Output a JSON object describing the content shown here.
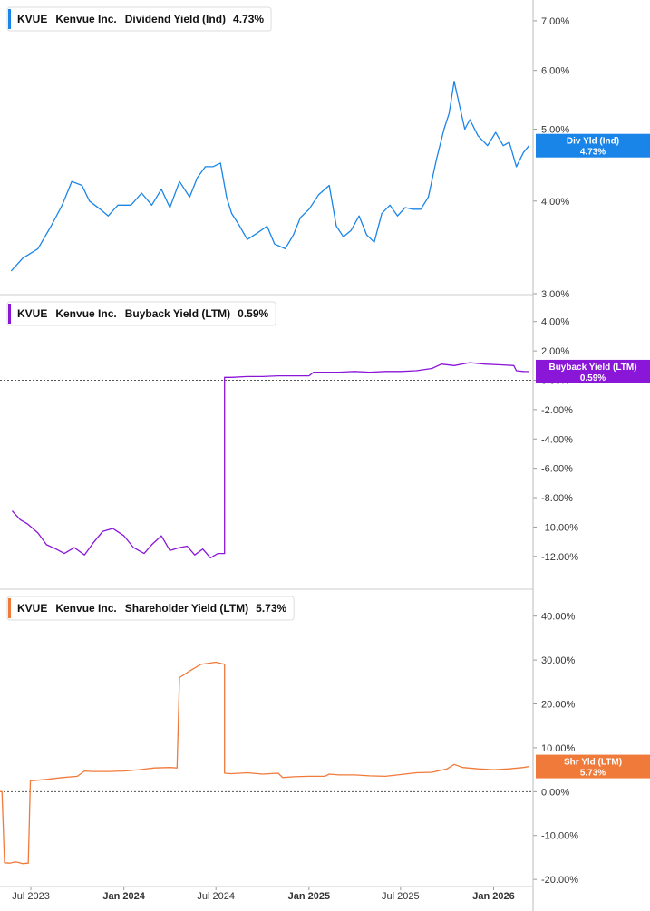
{
  "x_axis": {
    "ticks": [
      {
        "label": "Jul 2023",
        "date": "2023-07-01",
        "bold": false
      },
      {
        "label": "Jan 2024",
        "date": "2024-01-01",
        "bold": true
      },
      {
        "label": "Jul 2024",
        "date": "2024-07-01",
        "bold": false
      },
      {
        "label": "Jan 2025",
        "date": "2025-01-01",
        "bold": true
      },
      {
        "label": "Jul 2025",
        "date": "2025-07-01",
        "bold": false
      },
      {
        "label": "Jan 2026",
        "date": "2026-01-01",
        "bold": true
      }
    ],
    "range": [
      "2023-05-01",
      "2026-03-20"
    ]
  },
  "chart_data": [
    {
      "type": "line",
      "ticker": "KVUE",
      "company": "Kenvue Inc.",
      "metric": "Dividend Yield (Ind)",
      "last_value": "4.73%",
      "tag_line1": "Div Yld (Ind)",
      "tag_line2": "4.73%",
      "color": "#1a85e8",
      "scale": "log",
      "ylim": [
        2.95,
        7.3
      ],
      "yticks": [
        "7.00%",
        "6.00%",
        "5.00%",
        "4.00%",
        "3.00%"
      ],
      "ytick_values": [
        7,
        6,
        5,
        4,
        3
      ],
      "zero_line": false,
      "x": [
        "2023-05-23",
        "2023-06-15",
        "2023-07-15",
        "2023-08-10",
        "2023-09-01",
        "2023-09-20",
        "2023-10-10",
        "2023-10-25",
        "2023-11-15",
        "2023-12-01",
        "2023-12-20",
        "2024-01-15",
        "2024-02-05",
        "2024-02-25",
        "2024-03-15",
        "2024-04-01",
        "2024-04-20",
        "2024-05-10",
        "2024-05-25",
        "2024-06-10",
        "2024-06-25",
        "2024-07-10",
        "2024-07-22",
        "2024-08-01",
        "2024-08-15",
        "2024-09-01",
        "2024-09-20",
        "2024-10-10",
        "2024-10-25",
        "2024-11-15",
        "2024-12-01",
        "2024-12-15",
        "2025-01-01",
        "2025-01-20",
        "2025-02-10",
        "2025-02-24",
        "2025-03-10",
        "2025-03-25",
        "2025-04-10",
        "2025-04-25",
        "2025-05-10",
        "2025-05-25",
        "2025-06-10",
        "2025-06-25",
        "2025-07-10",
        "2025-07-25",
        "2025-08-10",
        "2025-08-25",
        "2025-09-10",
        "2025-09-25",
        "2025-10-05",
        "2025-10-15",
        "2025-10-25",
        "2025-11-05",
        "2025-11-15",
        "2025-12-01",
        "2025-12-20",
        "2026-01-05",
        "2026-01-20",
        "2026-02-01",
        "2026-02-15",
        "2026-03-01",
        "2026-03-12"
      ],
      "y": [
        3.22,
        3.35,
        3.45,
        3.7,
        3.95,
        4.25,
        4.2,
        4.0,
        3.9,
        3.82,
        3.95,
        3.95,
        4.1,
        3.95,
        4.15,
        3.92,
        4.25,
        4.05,
        4.3,
        4.45,
        4.45,
        4.5,
        4.05,
        3.85,
        3.72,
        3.55,
        3.62,
        3.7,
        3.5,
        3.45,
        3.6,
        3.8,
        3.9,
        4.08,
        4.2,
        3.7,
        3.58,
        3.65,
        3.82,
        3.6,
        3.52,
        3.85,
        3.95,
        3.82,
        3.92,
        3.9,
        3.9,
        4.05,
        4.55,
        5.0,
        5.25,
        5.8,
        5.4,
        5.0,
        5.15,
        4.9,
        4.75,
        4.95,
        4.75,
        4.8,
        4.45,
        4.65,
        4.75
      ]
    },
    {
      "type": "line",
      "ticker": "KVUE",
      "company": "Kenvue Inc.",
      "metric": "Buyback Yield (LTM)",
      "last_value": "0.59%",
      "tag_line1": "Buyback Yield (LTM)",
      "tag_line2": "0.59%",
      "color": "#8a16d8",
      "scale": "linear",
      "ylim": [
        -13,
        4.6
      ],
      "yticks": [
        "4.00%",
        "2.00%",
        "0.00%",
        "-2.00%",
        "-4.00%",
        "-6.00%",
        "-8.00%",
        "-10.00%",
        "-12.00%"
      ],
      "ytick_values": [
        4,
        2,
        0,
        -2,
        -4,
        -6,
        -8,
        -10,
        -12
      ],
      "zero_line": true,
      "x": [
        "2023-05-25",
        "2023-06-10",
        "2023-06-25",
        "2023-07-15",
        "2023-08-01",
        "2023-08-20",
        "2023-09-05",
        "2023-09-25",
        "2023-10-15",
        "2023-11-01",
        "2023-11-20",
        "2023-12-10",
        "2024-01-01",
        "2024-01-20",
        "2024-02-10",
        "2024-02-25",
        "2024-03-15",
        "2024-04-01",
        "2024-04-20",
        "2024-05-05",
        "2024-05-20",
        "2024-06-05",
        "2024-06-20",
        "2024-07-05",
        "2024-07-18",
        "2024-07-18",
        "2024-08-01",
        "2024-09-01",
        "2024-10-01",
        "2024-11-01",
        "2024-12-01",
        "2025-01-01",
        "2025-01-10",
        "2025-02-01",
        "2025-03-01",
        "2025-04-01",
        "2025-05-01",
        "2025-06-01",
        "2025-07-01",
        "2025-08-01",
        "2025-09-01",
        "2025-09-20",
        "2025-10-15",
        "2025-11-15",
        "2025-12-15",
        "2026-01-15",
        "2026-02-10",
        "2026-02-15",
        "2026-03-01",
        "2026-03-12"
      ],
      "y": [
        -8.9,
        -9.5,
        -9.8,
        -10.4,
        -11.2,
        -11.5,
        -11.8,
        -11.4,
        -11.9,
        -11.1,
        -10.3,
        -10.1,
        -10.6,
        -11.4,
        -11.8,
        -11.2,
        -10.6,
        -11.6,
        -11.4,
        -11.3,
        -11.9,
        -11.5,
        -12.1,
        -11.8,
        -11.8,
        0.2,
        0.2,
        0.25,
        0.25,
        0.3,
        0.3,
        0.3,
        0.55,
        0.55,
        0.55,
        0.6,
        0.55,
        0.6,
        0.6,
        0.65,
        0.8,
        1.1,
        1.0,
        1.2,
        1.1,
        1.05,
        1.0,
        0.65,
        0.6,
        0.59
      ]
    },
    {
      "type": "line",
      "ticker": "KVUE",
      "company": "Kenvue Inc.",
      "metric": "Shareholder Yield (LTM)",
      "last_value": "5.73%",
      "tag_line1": "Shr Yld (LTM)",
      "tag_line2": "5.73%",
      "color": "#f07a3a",
      "scale": "linear",
      "ylim": [
        -21,
        42
      ],
      "yticks": [
        "40.00%",
        "30.00%",
        "20.00%",
        "10.00%",
        "0.00%",
        "-10.00%",
        "-20.00%"
      ],
      "ytick_values": [
        40,
        30,
        20,
        10,
        0,
        -10,
        -20
      ],
      "zero_line": true,
      "x": [
        "2023-05-01",
        "2023-05-05",
        "2023-05-10",
        "2023-05-20",
        "2023-06-01",
        "2023-06-15",
        "2023-06-26",
        "2023-06-30",
        "2023-07-05",
        "2023-08-01",
        "2023-09-01",
        "2023-10-01",
        "2023-10-15",
        "2023-11-01",
        "2023-12-01",
        "2024-01-01",
        "2024-02-01",
        "2024-03-01",
        "2024-04-01",
        "2024-04-15",
        "2024-04-20",
        "2024-05-10",
        "2024-06-01",
        "2024-07-01",
        "2024-07-18",
        "2024-07-18",
        "2024-08-01",
        "2024-09-01",
        "2024-10-01",
        "2024-11-01",
        "2024-11-10",
        "2024-12-01",
        "2025-01-01",
        "2025-02-01",
        "2025-02-10",
        "2025-03-01",
        "2025-04-01",
        "2025-05-01",
        "2025-06-01",
        "2025-07-01",
        "2025-08-01",
        "2025-09-01",
        "2025-10-01",
        "2025-10-15",
        "2025-11-01",
        "2025-12-01",
        "2026-01-01",
        "2026-02-01",
        "2026-03-01",
        "2026-03-12"
      ],
      "y": [
        0,
        0,
        -16.2,
        -16.3,
        -16.0,
        -16.4,
        -16.3,
        2.5,
        2.5,
        2.8,
        3.2,
        3.5,
        4.7,
        4.6,
        4.6,
        4.7,
        5.0,
        5.4,
        5.5,
        5.4,
        26.0,
        27.5,
        29.0,
        29.5,
        29.0,
        4.2,
        4.1,
        4.3,
        4.0,
        4.2,
        3.2,
        3.4,
        3.5,
        3.5,
        4.0,
        3.8,
        3.8,
        3.6,
        3.5,
        3.9,
        4.3,
        4.4,
        5.2,
        6.2,
        5.5,
        5.2,
        5.0,
        5.2,
        5.5,
        5.73
      ]
    }
  ]
}
